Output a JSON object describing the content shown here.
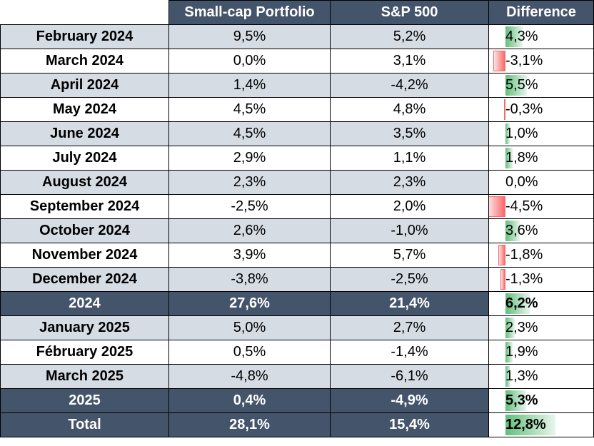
{
  "header": {
    "col1": "",
    "col2": "Small-cap Portfolio",
    "col3": "S&P 500",
    "col4": "Difference"
  },
  "rows": [
    {
      "label": "February 2024",
      "portfolio": "9,5%",
      "sp500": "5,2%",
      "difference": "4,3%",
      "diff_value": 4.3,
      "type": "odd"
    },
    {
      "label": "March 2024",
      "portfolio": "0,0%",
      "sp500": "3,1%",
      "difference": "-3,1%",
      "diff_value": -3.1,
      "type": "even"
    },
    {
      "label": "April 2024",
      "portfolio": "1,4%",
      "sp500": "-4,2%",
      "difference": "5,5%",
      "diff_value": 5.5,
      "type": "odd"
    },
    {
      "label": "May 2024",
      "portfolio": "4,5%",
      "sp500": "4,8%",
      "difference": "-0,3%",
      "diff_value": -0.3,
      "type": "even"
    },
    {
      "label": "June 2024",
      "portfolio": "4,5%",
      "sp500": "3,5%",
      "difference": "1,0%",
      "diff_value": 1.0,
      "type": "odd"
    },
    {
      "label": "July 2024",
      "portfolio": "2,9%",
      "sp500": "1,1%",
      "difference": "1,8%",
      "diff_value": 1.8,
      "type": "even"
    },
    {
      "label": "August 2024",
      "portfolio": "2,3%",
      "sp500": "2,3%",
      "difference": "0,0%",
      "diff_value": 0.0,
      "type": "odd"
    },
    {
      "label": "September 2024",
      "portfolio": "-2,5%",
      "sp500": "2,0%",
      "difference": "-4,5%",
      "diff_value": -4.5,
      "type": "even"
    },
    {
      "label": "October 2024",
      "portfolio": "2,6%",
      "sp500": "-1,0%",
      "difference": "3,6%",
      "diff_value": 3.6,
      "type": "odd"
    },
    {
      "label": "November 2024",
      "portfolio": "3,9%",
      "sp500": "5,7%",
      "difference": "-1,8%",
      "diff_value": -1.8,
      "type": "even"
    },
    {
      "label": "December 2024",
      "portfolio": "-3,8%",
      "sp500": "-2,5%",
      "difference": "-1,3%",
      "diff_value": -1.3,
      "type": "odd"
    },
    {
      "label": "2024",
      "portfolio": "27,6%",
      "sp500": "21,4%",
      "difference": "6,2%",
      "diff_value": 6.2,
      "type": "summary"
    },
    {
      "label": "January 2025",
      "portfolio": "5,0%",
      "sp500": "2,7%",
      "difference": "2,3%",
      "diff_value": 2.3,
      "type": "odd"
    },
    {
      "label": "Fébruary 2025",
      "portfolio": "0,5%",
      "sp500": "-1,4%",
      "difference": "1,9%",
      "diff_value": 1.9,
      "type": "even"
    },
    {
      "label": "March 2025",
      "portfolio": "-4,8%",
      "sp500": "-6,1%",
      "difference": "1,3%",
      "diff_value": 1.3,
      "type": "odd"
    },
    {
      "label": "2025",
      "portfolio": "0,4%",
      "sp500": "-4,9%",
      "difference": "5,3%",
      "diff_value": 5.3,
      "type": "summary"
    },
    {
      "label": "Total",
      "portfolio": "28,1%",
      "sp500": "15,4%",
      "difference": "12,8%",
      "diff_value": 12.8,
      "type": "summary"
    }
  ],
  "colors": {
    "header_bg": "#44546a",
    "band_bg": "#d6dce4",
    "positive_bar": "#63be7b",
    "negative_bar": "#f8696b"
  }
}
